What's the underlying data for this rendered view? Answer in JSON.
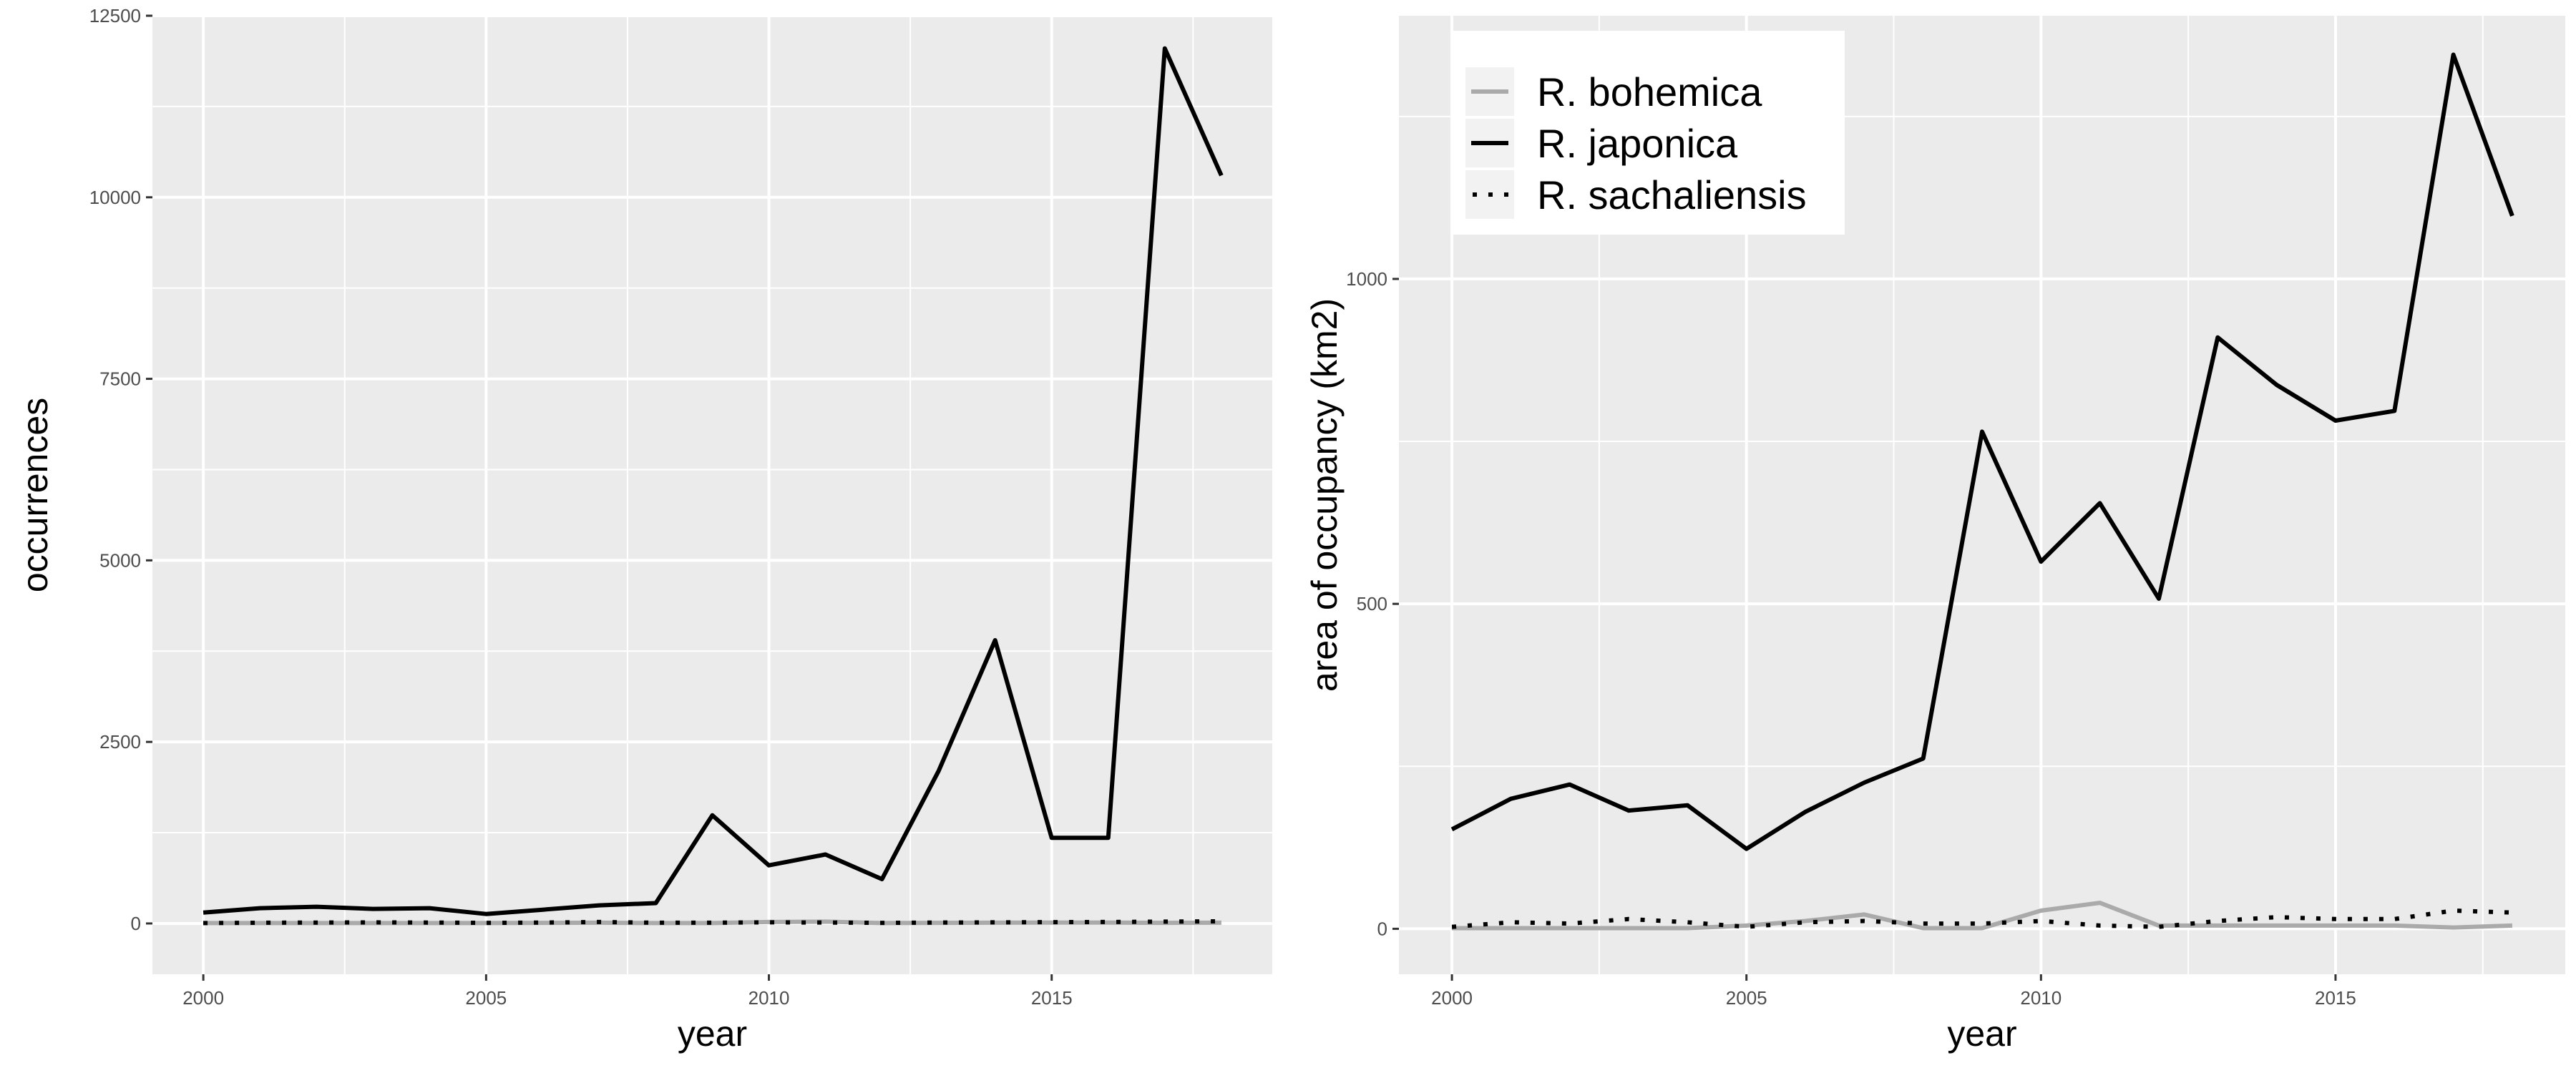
{
  "chart_data": [
    {
      "type": "line",
      "xlabel": "year",
      "ylabel": "occurrences",
      "xlim": [
        1999.1,
        2018.9
      ],
      "ylim": [
        -700,
        12500
      ],
      "xticks": [
        2000,
        2005,
        2010,
        2015
      ],
      "yticks": [
        0,
        2500,
        5000,
        7500,
        10000,
        12500
      ],
      "grid": true,
      "legend": false,
      "x": [
        2000,
        2001,
        2002,
        2003,
        2004,
        2005,
        2006,
        2007,
        2008,
        2009,
        2010,
        2011,
        2012,
        2013,
        2014,
        2015,
        2016,
        2017,
        2018
      ],
      "series": [
        {
          "name": "R. bohemica",
          "color": "#aaaaaa",
          "dash": "solid",
          "values": [
            5,
            5,
            5,
            5,
            5,
            5,
            8,
            10,
            5,
            5,
            20,
            25,
            5,
            8,
            10,
            12,
            12,
            8,
            10
          ]
        },
        {
          "name": "R. japonica",
          "color": "#000000",
          "dash": "solid",
          "values": [
            150,
            210,
            230,
            200,
            210,
            130,
            190,
            250,
            280,
            1490,
            800,
            950,
            610,
            2100,
            3900,
            1180,
            1180,
            12050,
            10300
          ]
        },
        {
          "name": "R. sachaliensis",
          "color": "#000000",
          "dash": "dotted",
          "values": [
            5,
            10,
            12,
            15,
            12,
            8,
            12,
            20,
            10,
            10,
            15,
            12,
            8,
            12,
            15,
            18,
            20,
            25,
            30
          ]
        }
      ]
    },
    {
      "type": "line",
      "xlabel": "year",
      "ylabel": "area of occupancy (km2)",
      "xlim": [
        1999.1,
        2018.9
      ],
      "ylim": [
        -70,
        1405
      ],
      "xticks": [
        2000,
        2005,
        2010,
        2015
      ],
      "yticks": [
        0,
        500,
        1000
      ],
      "grid": true,
      "legend": true,
      "legend_position": "top-left",
      "x": [
        2000,
        2001,
        2002,
        2003,
        2004,
        2005,
        2006,
        2007,
        2008,
        2009,
        2010,
        2011,
        2012,
        2013,
        2014,
        2015,
        2016,
        2017,
        2018
      ],
      "series": [
        {
          "name": "R. bohemica",
          "color": "#aaaaaa",
          "dash": "solid",
          "values": [
            1,
            1,
            1,
            1,
            1,
            5,
            12,
            22,
            1,
            1,
            28,
            40,
            5,
            5,
            5,
            5,
            5,
            2,
            5
          ]
        },
        {
          "name": "R. japonica",
          "color": "#000000",
          "dash": "solid",
          "values": [
            153,
            200,
            222,
            182,
            190,
            123,
            180,
            225,
            262,
            765,
            565,
            655,
            508,
            910,
            837,
            782,
            797,
            1345,
            1097
          ]
        },
        {
          "name": "R. sachaliensis",
          "color": "#000000",
          "dash": "dotted",
          "values": [
            3,
            10,
            8,
            15,
            10,
            3,
            10,
            12,
            8,
            8,
            12,
            5,
            3,
            12,
            18,
            15,
            15,
            28,
            25
          ]
        }
      ]
    }
  ]
}
